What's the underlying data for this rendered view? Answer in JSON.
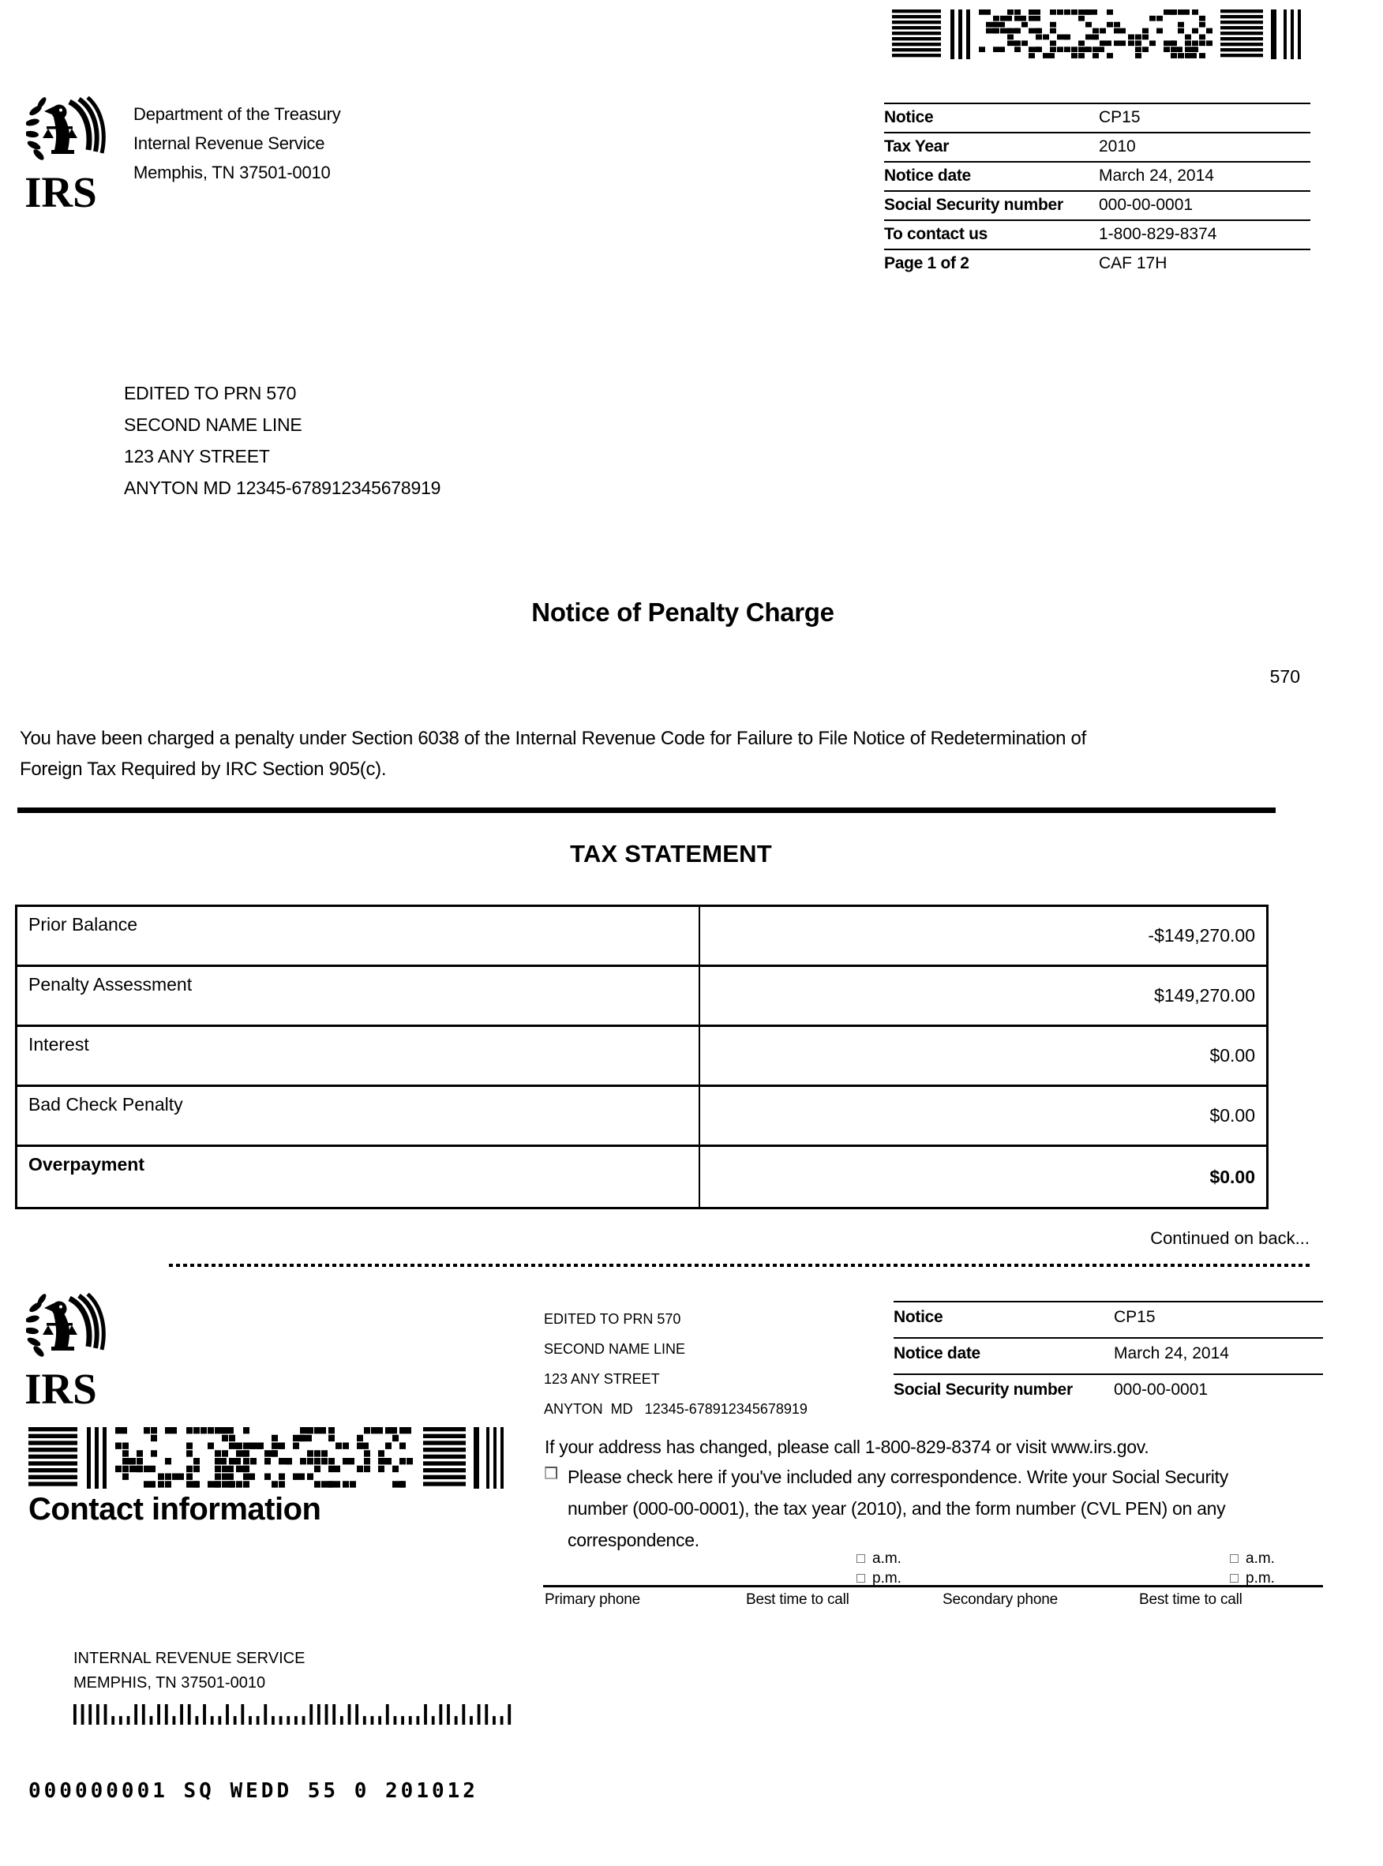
{
  "colors": {
    "ink": "#000000",
    "paper": "#ffffff"
  },
  "header": {
    "logo_text": "IRS",
    "agency_lines": [
      "Department of the Treasury",
      "Internal Revenue Service",
      "Memphis, TN 37501-0010"
    ]
  },
  "notice_info": {
    "rows": [
      {
        "label": "Notice",
        "value": "CP15"
      },
      {
        "label": "Tax Year",
        "value": "2010"
      },
      {
        "label": "Notice date",
        "value": "March 24, 2014"
      },
      {
        "label": "Social Security number",
        "value": "000-00-0001"
      },
      {
        "label": "To contact us",
        "value": "1-800-829-8374"
      },
      {
        "label": "Page 1 of 2",
        "value": "CAF 17H"
      }
    ]
  },
  "recipient": {
    "address_lines": [
      "EDITED TO PRN 570",
      "SECOND NAME LINE",
      "123 ANY STREET",
      "ANYTON MD 12345-678912345678919"
    ]
  },
  "notice": {
    "title": "Notice of Penalty Charge",
    "code": "570",
    "body_lines": [
      "You have been charged a penalty under Section 6038 of the Internal Revenue Code for Failure to File Notice of Redetermination of",
      "Foreign Tax Required by IRC Section 905(c)."
    ]
  },
  "tax_statement": {
    "heading": "TAX STATEMENT",
    "rows": [
      {
        "label": "Prior Balance",
        "value": "-$149,270.00"
      },
      {
        "label": "Penalty Assessment",
        "value": "$149,270.00"
      },
      {
        "label": "Interest",
        "value": "$0.00"
      },
      {
        "label": "Bad Check Penalty",
        "value": "$0.00"
      },
      {
        "label": "Overpayment",
        "value": "$0.00"
      }
    ],
    "continued_note": "Continued on back..."
  },
  "stub": {
    "contact_heading": "Contact information",
    "recipient_address_lines": [
      "EDITED TO PRN 570",
      "SECOND NAME LINE",
      "123 ANY STREET",
      "ANYTON  MD   12345-678912345678919"
    ],
    "notice_rows": [
      {
        "label": "Notice",
        "value": "CP15"
      },
      {
        "label": "Notice date",
        "value": "March 24, 2014"
      },
      {
        "label": "Social Security number",
        "value": "000-00-0001"
      }
    ],
    "address_change_line": "If your address has changed, please call 1-800-829-8374 or visit www.irs.gov.",
    "correspondence_lines": [
      "Please check here if you've included any correspondence. Write your Social Security",
      "number (000-00-0001), the tax year (2010), and the form number (CVL PEN) on any",
      "correspondence."
    ],
    "time_options": [
      "a.m.",
      "p.m."
    ],
    "phone_fields": [
      "Primary phone",
      "Best time to call",
      "Secondary phone",
      "Best time to call"
    ],
    "return_address_lines": [
      "INTERNAL REVENUE SERVICE",
      "MEMPHIS, TN 37501-0010"
    ],
    "processing_code": "000000001 SQ WEDD 55 0 201012"
  }
}
